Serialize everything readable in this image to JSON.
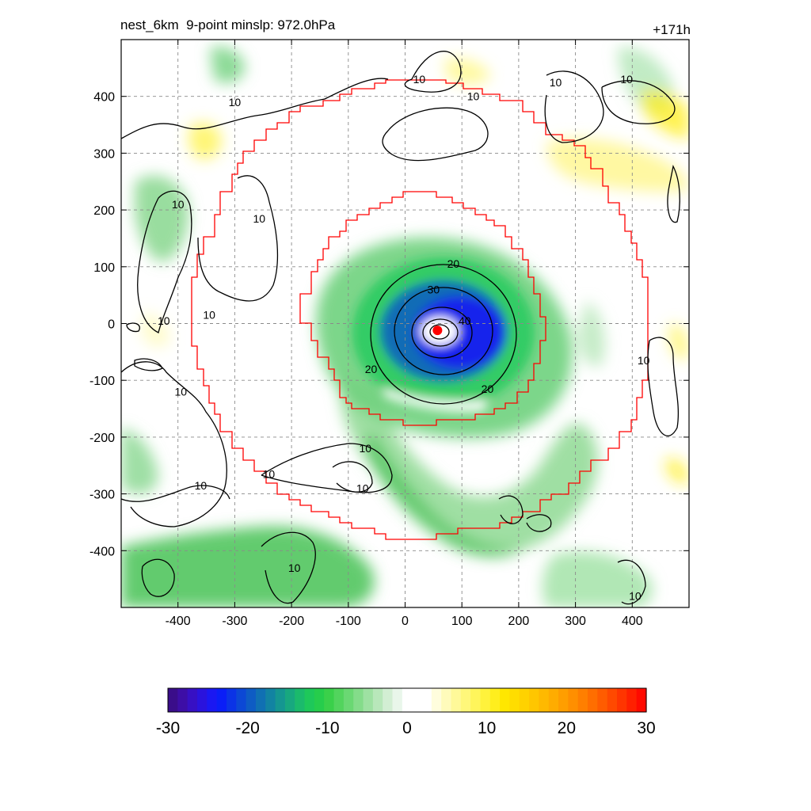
{
  "header": {
    "title": "nest_6km  9-point minslp: 972.0hPa",
    "timestamp": "+171h"
  },
  "map": {
    "x_ticks": [
      "-400",
      "-300",
      "-200",
      "-100",
      "0",
      "100",
      "200",
      "300",
      "400"
    ],
    "y_ticks": [
      "400",
      "300",
      "200",
      "100",
      "0",
      "-100",
      "-200",
      "-300",
      "-400"
    ],
    "x_tick_values": [
      -400,
      -300,
      -200,
      -100,
      0,
      100,
      200,
      300,
      400
    ],
    "y_tick_values": [
      400,
      300,
      200,
      100,
      0,
      -100,
      -200,
      -300,
      -400
    ],
    "xlim": [
      -500,
      500
    ],
    "ylim": [
      -500,
      500
    ],
    "grid": true,
    "center_marker": {
      "x": 57,
      "y": -12
    },
    "contour_labels": [
      {
        "text": "10",
        "x": -300,
        "y": 390
      },
      {
        "text": "10",
        "x": 25,
        "y": 430
      },
      {
        "text": "10",
        "x": 120,
        "y": 400
      },
      {
        "text": "10",
        "x": 265,
        "y": 425
      },
      {
        "text": "10",
        "x": 390,
        "y": 430
      },
      {
        "text": "10",
        "x": -400,
        "y": 210
      },
      {
        "text": "10",
        "x": -257,
        "y": 185
      },
      {
        "text": "10",
        "x": -345,
        "y": 15
      },
      {
        "text": "10",
        "x": -425,
        "y": 5
      },
      {
        "text": "20",
        "x": 85,
        "y": 105
      },
      {
        "text": "30",
        "x": 50,
        "y": 60
      },
      {
        "text": "40",
        "x": 105,
        "y": 5
      },
      {
        "text": "20",
        "x": -60,
        "y": -80
      },
      {
        "text": "20",
        "x": 145,
        "y": -115
      },
      {
        "text": "10",
        "x": -395,
        "y": -120
      },
      {
        "text": "10",
        "x": -70,
        "y": -220
      },
      {
        "text": "10",
        "x": -240,
        "y": -265
      },
      {
        "text": "10",
        "x": -360,
        "y": -285
      },
      {
        "text": "10",
        "x": -75,
        "y": -290
      },
      {
        "text": "10",
        "x": 420,
        "y": -65
      },
      {
        "text": "10",
        "x": -195,
        "y": -430
      },
      {
        "text": "10",
        "x": 405,
        "y": -480
      }
    ]
  },
  "colorbar": {
    "tick_labels": [
      "-30",
      "-20",
      "-10",
      "0",
      "10",
      "20",
      "30"
    ],
    "tick_values": [
      -30,
      -20,
      -10,
      0,
      10,
      20,
      30
    ],
    "range": [
      -30,
      30
    ],
    "colors": [
      "#3a0d8a",
      "#3d0ea6",
      "#3710c4",
      "#2a13dd",
      "#1a18f2",
      "#0a1ef7",
      "#0b33e6",
      "#0c48d5",
      "#0e5cc4",
      "#1070b3",
      "#1283a2",
      "#159691",
      "#18a87f",
      "#1bba6c",
      "#1ec85a",
      "#26cd4c",
      "#3ad04a",
      "#52d45d",
      "#6ad873",
      "#84dc8a",
      "#9ee1a2",
      "#b8e7ba",
      "#d2eed3",
      "#e9f6ea",
      "#ffffff",
      "#ffffff",
      "#ffffff",
      "#fffddd",
      "#fffbbb",
      "#fff999",
      "#fff77a",
      "#fff55b",
      "#fff23c",
      "#ffee1e",
      "#ffe700",
      "#ffdd00",
      "#ffd200",
      "#ffc600",
      "#ffb900",
      "#ffac00",
      "#ff9e00",
      "#ff8f00",
      "#ff7f00",
      "#ff6e00",
      "#ff5c00",
      "#ff4900",
      "#ff3500",
      "#ff2000",
      "#ff0a00"
    ]
  }
}
